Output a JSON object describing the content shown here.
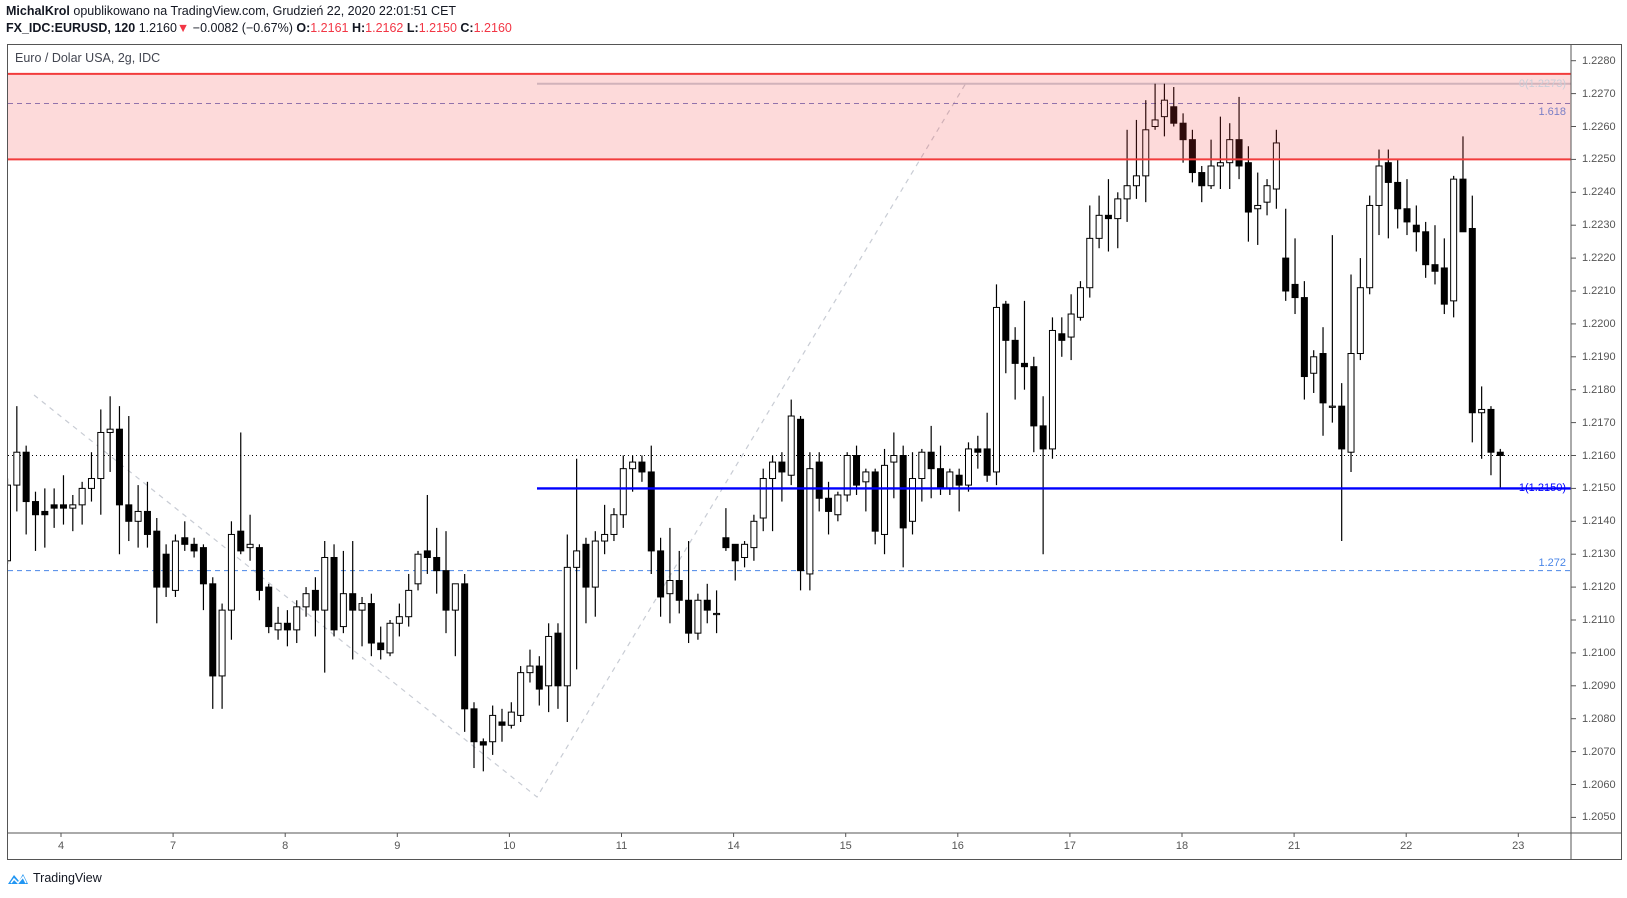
{
  "header": {
    "author": "MichalKrol",
    "published": "opublikowano na TradingView.com, Grudzień 22, 2020 22:01:51 CET",
    "symbol": "FX_IDC:EURUSD, 120",
    "last": "1.2160",
    "change_arrow": "▼",
    "change": "−0.0082 (−0.67%)",
    "o_label": "O:",
    "o_value": "1.2161",
    "h_label": "H:",
    "h_value": "1.2162",
    "l_label": "L:",
    "l_value": "1.2150",
    "c_label": "C:",
    "c_value": "1.2160"
  },
  "legend": "Euro / Dolar USA, 2g, IDC",
  "footer": {
    "logo_text": "TradingView",
    "logo_icon": "tradingview-cloud-icon"
  },
  "colors": {
    "up_body": "#ffffff",
    "down_body": "#000000",
    "zone_fill": "#fcd9d9",
    "zone_line": "#f23c3c",
    "fib0": "#c9ced8",
    "fib1618": "#7a7fc6",
    "fib1": "#0000ff",
    "fib1272": "#4a86e8",
    "trend": "#c8ccd4"
  },
  "chart_data": {
    "type": "candlestick",
    "interval": "120",
    "ylim": [
      1.2045,
      1.2285
    ],
    "grid": false,
    "y_ticks": [
      "1.2280",
      "1.2270",
      "1.2260",
      "1.2250",
      "1.2240",
      "1.2230",
      "1.2220",
      "1.2210",
      "1.2200",
      "1.2190",
      "1.2180",
      "1.2170",
      "1.2160",
      "1.2150",
      "1.2140",
      "1.2130",
      "1.2120",
      "1.2110",
      "1.2100",
      "1.2090",
      "1.2080",
      "1.2070",
      "1.2060",
      "1.2050"
    ],
    "x_ticks": [
      "4",
      "7",
      "8",
      "9",
      "10",
      "11",
      "14",
      "15",
      "16",
      "17",
      "18",
      "21",
      "22",
      "23"
    ],
    "last_price_line": 1.216,
    "zone": {
      "from": 1.225,
      "to": 1.2276
    },
    "fib_levels": [
      {
        "label": "0(1.2273)",
        "price": 1.2273
      },
      {
        "label": "1.618",
        "price": 1.2267
      },
      {
        "label": "1(1.2150)",
        "price": 1.215
      },
      {
        "label": "1.272",
        "price": 1.2125
      }
    ],
    "ohlc_fields": [
      "open",
      "high",
      "low",
      "close"
    ],
    "candles": [
      [
        1.2128,
        1.2153,
        1.2127,
        1.2151
      ],
      [
        1.2151,
        1.2175,
        1.2143,
        1.2161
      ],
      [
        1.2161,
        1.2163,
        1.2136,
        1.2146
      ],
      [
        1.2146,
        1.2149,
        1.2131,
        1.2142
      ],
      [
        1.2143,
        1.215,
        1.2132,
        1.2142
      ],
      [
        1.2145,
        1.215,
        1.2138,
        1.2144
      ],
      [
        1.2145,
        1.2154,
        1.2139,
        1.2144
      ],
      [
        1.2144,
        1.2148,
        1.2137,
        1.2145
      ],
      [
        1.2145,
        1.2152,
        1.2139,
        1.215
      ],
      [
        1.215,
        1.2161,
        1.2146,
        1.2153
      ],
      [
        1.2153,
        1.2174,
        1.2142,
        1.2167
      ],
      [
        1.2167,
        1.2178,
        1.2155,
        1.2168
      ],
      [
        1.2168,
        1.2175,
        1.213,
        1.2145
      ],
      [
        1.2145,
        1.2172,
        1.2134,
        1.214
      ],
      [
        1.214,
        1.2151,
        1.2132,
        1.2143
      ],
      [
        1.2143,
        1.2152,
        1.2132,
        1.2136
      ],
      [
        1.2137,
        1.2141,
        1.2109,
        1.212
      ],
      [
        1.213,
        1.2133,
        1.2117,
        1.212
      ],
      [
        1.2119,
        1.2136,
        1.2117,
        1.2134
      ],
      [
        1.2135,
        1.214,
        1.2131,
        1.2133
      ],
      [
        1.2133,
        1.2135,
        1.2129,
        1.2131
      ],
      [
        1.2132,
        1.2133,
        1.2113,
        1.2121
      ],
      [
        1.2121,
        1.2123,
        1.2083,
        1.2093
      ],
      [
        1.2093,
        1.2115,
        1.2083,
        1.2113
      ],
      [
        1.2113,
        1.214,
        1.2104,
        1.2136
      ],
      [
        1.2137,
        1.2167,
        1.213,
        1.2131
      ],
      [
        1.2132,
        1.2142,
        1.2128,
        1.2133
      ],
      [
        1.2132,
        1.2133,
        1.2116,
        1.2119
      ],
      [
        1.212,
        1.2121,
        1.2106,
        1.2108
      ],
      [
        1.2107,
        1.2114,
        1.2104,
        1.2109
      ],
      [
        1.2109,
        1.2113,
        1.2102,
        1.2107
      ],
      [
        1.2107,
        1.2116,
        1.2103,
        1.2114
      ],
      [
        1.2114,
        1.212,
        1.2111,
        1.2118
      ],
      [
        1.2119,
        1.2123,
        1.2105,
        1.2113
      ],
      [
        1.2113,
        1.2134,
        1.2094,
        1.2129
      ],
      [
        1.2129,
        1.2133,
        1.2105,
        1.2107
      ],
      [
        1.2108,
        1.2131,
        1.2106,
        1.2118
      ],
      [
        1.2118,
        1.2134,
        1.2098,
        1.2113
      ],
      [
        1.2113,
        1.2117,
        1.2102,
        1.2115
      ],
      [
        1.2115,
        1.2118,
        1.2099,
        1.2103
      ],
      [
        1.2103,
        1.2108,
        1.2098,
        1.2101
      ],
      [
        1.21,
        1.211,
        1.2099,
        1.2109
      ],
      [
        1.2109,
        1.2115,
        1.2105,
        1.2111
      ],
      [
        1.2111,
        1.2124,
        1.2108,
        1.2119
      ],
      [
        1.2121,
        1.2131,
        1.2119,
        1.213
      ],
      [
        1.2131,
        1.2148,
        1.2124,
        1.2129
      ],
      [
        1.2129,
        1.2138,
        1.2118,
        1.2125
      ],
      [
        1.2125,
        1.2137,
        1.2106,
        1.2113
      ],
      [
        1.2113,
        1.2121,
        1.2099,
        1.2121
      ],
      [
        1.2121,
        1.2124,
        1.2076,
        1.2083
      ],
      [
        1.2083,
        1.2085,
        1.2065,
        1.2073
      ],
      [
        1.2073,
        1.2074,
        1.2064,
        1.2072
      ],
      [
        1.2073,
        1.2084,
        1.2069,
        1.2081
      ],
      [
        1.2079,
        1.2083,
        1.2073,
        1.2078
      ],
      [
        1.2078,
        1.2085,
        1.2077,
        1.2082
      ],
      [
        1.2081,
        1.2096,
        1.2079,
        1.2094
      ],
      [
        1.2094,
        1.2101,
        1.2091,
        1.2096
      ],
      [
        1.2096,
        1.2099,
        1.2084,
        1.2089
      ],
      [
        1.209,
        1.2109,
        1.2082,
        1.2105
      ],
      [
        1.2106,
        1.2109,
        1.2083,
        1.209
      ],
      [
        1.209,
        1.2136,
        1.2079,
        1.2126
      ],
      [
        1.2126,
        1.2159,
        1.2095,
        1.2131
      ],
      [
        1.2133,
        1.2135,
        1.2109,
        1.212
      ],
      [
        1.212,
        1.2137,
        1.2111,
        1.2134
      ],
      [
        1.2134,
        1.2145,
        1.213,
        1.2136
      ],
      [
        1.2136,
        1.2144,
        1.2134,
        1.2142
      ],
      [
        1.2142,
        1.216,
        1.2138,
        1.2156
      ],
      [
        1.2156,
        1.216,
        1.2149,
        1.2158
      ],
      [
        1.2158,
        1.216,
        1.2152,
        1.2155
      ],
      [
        1.2155,
        1.2163,
        1.2124,
        1.2131
      ],
      [
        1.2131,
        1.2135,
        1.2111,
        1.2117
      ],
      [
        1.2118,
        1.2138,
        1.2109,
        1.2122
      ],
      [
        1.2122,
        1.2131,
        1.2112,
        1.2116
      ],
      [
        1.2116,
        1.2134,
        1.2103,
        1.2106
      ],
      [
        1.2106,
        1.2118,
        1.2104,
        1.2116
      ],
      [
        1.2116,
        1.2121,
        1.2109,
        1.2113
      ],
      [
        1.2112,
        1.2119,
        1.2106,
        1.2112
      ],
      [
        1.2135,
        1.2144,
        1.2131,
        1.2132
      ],
      [
        1.2133,
        1.2133,
        1.2122,
        1.2128
      ],
      [
        1.2129,
        1.2134,
        1.2126,
        1.2133
      ],
      [
        1.2132,
        1.2142,
        1.2128,
        1.214
      ],
      [
        1.2141,
        1.2156,
        1.2137,
        1.2153
      ],
      [
        1.2153,
        1.216,
        1.2137,
        1.2158
      ],
      [
        1.2158,
        1.2161,
        1.2146,
        1.2155
      ],
      [
        1.2154,
        1.2177,
        1.2151,
        1.2172
      ],
      [
        1.2171,
        1.2172,
        1.2119,
        1.2125
      ],
      [
        1.2124,
        1.2161,
        1.2119,
        1.2156
      ],
      [
        1.2158,
        1.2161,
        1.2143,
        1.2147
      ],
      [
        1.2147,
        1.2152,
        1.2136,
        1.2143
      ],
      [
        1.2142,
        1.2149,
        1.214,
        1.2148
      ],
      [
        1.2148,
        1.2161,
        1.2146,
        1.216
      ],
      [
        1.216,
        1.2163,
        1.2148,
        1.2151
      ],
      [
        1.2152,
        1.2156,
        1.2143,
        1.2155
      ],
      [
        1.2155,
        1.2156,
        1.2133,
        1.2137
      ],
      [
        1.2136,
        1.2162,
        1.213,
        1.2157
      ],
      [
        1.2158,
        1.2167,
        1.2147,
        1.216
      ],
      [
        1.216,
        1.2163,
        1.2126,
        1.2138
      ],
      [
        1.214,
        1.2161,
        1.2136,
        1.2153
      ],
      [
        1.2153,
        1.2162,
        1.2146,
        1.2161
      ],
      [
        1.2161,
        1.2169,
        1.2147,
        1.2156
      ],
      [
        1.2156,
        1.2163,
        1.2148,
        1.215
      ],
      [
        1.215,
        1.2156,
        1.2148,
        1.2155
      ],
      [
        1.2154,
        1.2156,
        1.2143,
        1.2151
      ],
      [
        1.2151,
        1.2164,
        1.2149,
        1.2162
      ],
      [
        1.2162,
        1.2166,
        1.2156,
        1.2161
      ],
      [
        1.2162,
        1.2173,
        1.2152,
        1.2154
      ],
      [
        1.2155,
        1.2212,
        1.2151,
        1.2205
      ],
      [
        1.2206,
        1.2207,
        1.2185,
        1.2195
      ],
      [
        1.2195,
        1.2199,
        1.2177,
        1.2188
      ],
      [
        1.2188,
        1.2207,
        1.218,
        1.2187
      ],
      [
        1.2187,
        1.219,
        1.2161,
        1.2169
      ],
      [
        1.2169,
        1.2178,
        1.213,
        1.2162
      ],
      [
        1.2162,
        1.2202,
        1.2159,
        1.2198
      ],
      [
        1.2197,
        1.2202,
        1.219,
        1.2195
      ],
      [
        1.2196,
        1.2209,
        1.2189,
        1.2203
      ],
      [
        1.2202,
        1.2213,
        1.2201,
        1.2211
      ],
      [
        1.2211,
        1.2236,
        1.2208,
        1.2226
      ],
      [
        1.2226,
        1.2239,
        1.2223,
        1.2233
      ],
      [
        1.2233,
        1.2244,
        1.2222,
        1.2232
      ],
      [
        1.2232,
        1.224,
        1.2223,
        1.2238
      ],
      [
        1.2238,
        1.2259,
        1.2231,
        1.2242
      ],
      [
        1.2242,
        1.2262,
        1.2238,
        1.2245
      ],
      [
        1.2245,
        1.2268,
        1.2237,
        1.2259
      ],
      [
        1.226,
        1.2273,
        1.2259,
        1.2262
      ],
      [
        1.2263,
        1.2273,
        1.2257,
        1.2268
      ],
      [
        1.2266,
        1.2272,
        1.226,
        1.2261
      ],
      [
        1.2261,
        1.2264,
        1.2249,
        1.2256
      ],
      [
        1.2256,
        1.2259,
        1.2243,
        1.2246
      ],
      [
        1.2246,
        1.2248,
        1.2237,
        1.2242
      ],
      [
        1.2242,
        1.2256,
        1.2241,
        1.2248
      ],
      [
        1.2248,
        1.2263,
        1.2241,
        1.2249
      ],
      [
        1.2249,
        1.2261,
        1.2241,
        1.2256
      ],
      [
        1.2256,
        1.2269,
        1.2244,
        1.2248
      ],
      [
        1.2249,
        1.2254,
        1.2225,
        1.2234
      ],
      [
        1.2235,
        1.2246,
        1.2224,
        1.2236
      ],
      [
        1.2237,
        1.2244,
        1.2233,
        1.2242
      ],
      [
        1.2241,
        1.2259,
        1.2235,
        1.2255
      ],
      [
        1.222,
        1.2235,
        1.2207,
        1.221
      ],
      [
        1.2212,
        1.2226,
        1.2203,
        1.2208
      ],
      [
        1.2208,
        1.2213,
        1.2177,
        1.2184
      ],
      [
        1.2185,
        1.2192,
        1.2179,
        1.219
      ],
      [
        1.2191,
        1.2199,
        1.2166,
        1.2176
      ],
      [
        1.2175,
        1.2227,
        1.217,
        1.2175
      ],
      [
        1.2175,
        1.2182,
        1.2134,
        1.2162
      ],
      [
        1.2161,
        1.2215,
        1.2155,
        1.2191
      ],
      [
        1.2191,
        1.222,
        1.2189,
        1.2211
      ],
      [
        1.2211,
        1.2239,
        1.2209,
        1.2236
      ],
      [
        1.2236,
        1.2253,
        1.2227,
        1.2248
      ],
      [
        1.2249,
        1.2253,
        1.2226,
        1.2243
      ],
      [
        1.2243,
        1.225,
        1.2229,
        1.2235
      ],
      [
        1.2235,
        1.2244,
        1.2227,
        1.2231
      ],
      [
        1.223,
        1.2236,
        1.2222,
        1.2228
      ],
      [
        1.2228,
        1.2231,
        1.2214,
        1.2218
      ],
      [
        1.2218,
        1.223,
        1.2212,
        1.2216
      ],
      [
        1.2217,
        1.2226,
        1.2203,
        1.2206
      ],
      [
        1.2207,
        1.2245,
        1.2202,
        1.2244
      ],
      [
        1.2244,
        1.2257,
        1.2228,
        1.2228
      ],
      [
        1.2229,
        1.2239,
        1.2164,
        1.2173
      ],
      [
        1.2173,
        1.2181,
        1.2159,
        1.2174
      ],
      [
        1.2174,
        1.2175,
        1.2154,
        1.2161
      ],
      [
        1.2161,
        1.2162,
        1.215,
        1.216
      ]
    ]
  }
}
